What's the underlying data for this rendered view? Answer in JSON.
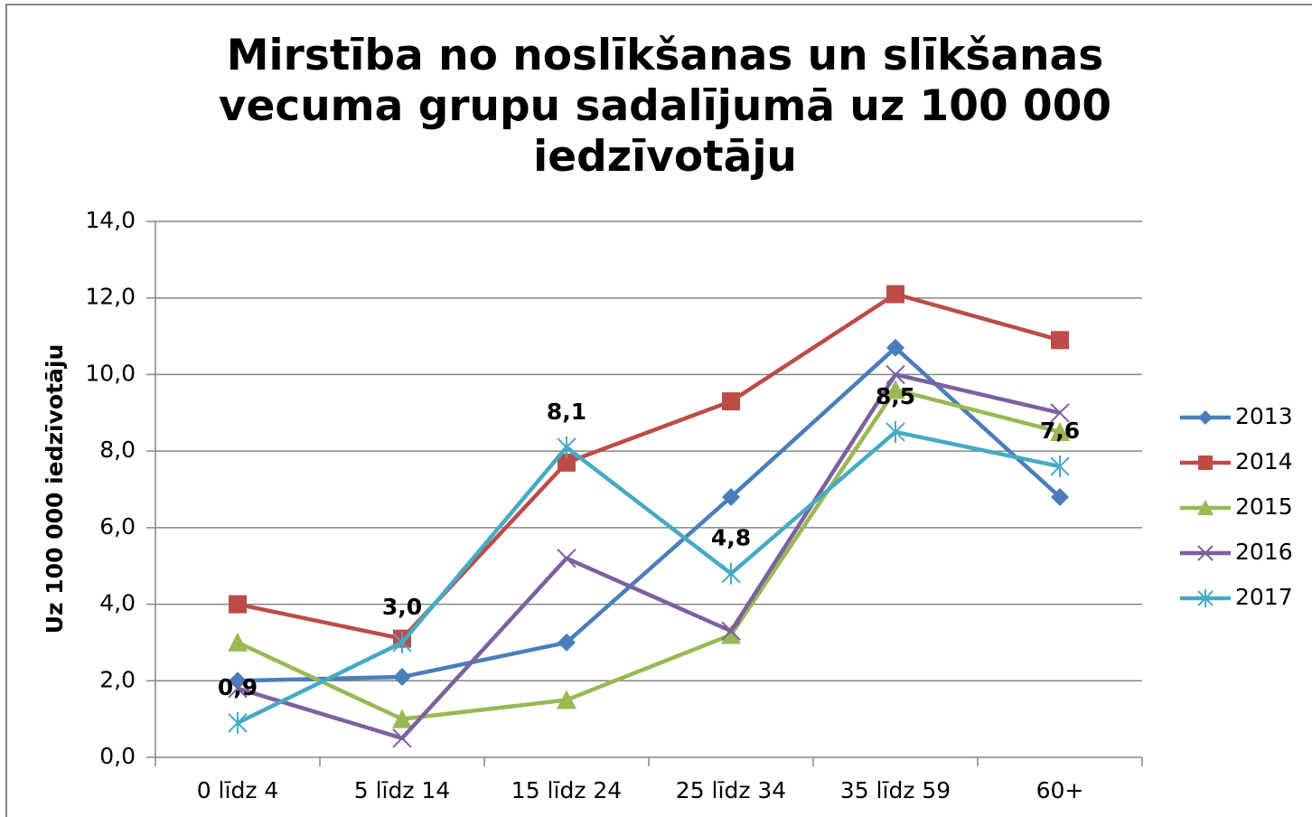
{
  "chart_data": {
    "type": "line",
    "title": "Mirstība no noslīkšanas un slīkšanas vecuma grupu sadalījumā uz 100 000 iedzīvotāju",
    "ylabel": "Uz 100 000 iedzīvotāju",
    "categories": [
      "0 līdz 4",
      "5 līdz 14",
      "15 līdz 24",
      "25 līdz 34",
      "35 līdz 59",
      "60+"
    ],
    "ylim": [
      0,
      14
    ],
    "yticks": [
      {
        "value": 0,
        "label": "0,0"
      },
      {
        "value": 2,
        "label": "2,0"
      },
      {
        "value": 4,
        "label": "4,0"
      },
      {
        "value": 6,
        "label": "6,0"
      },
      {
        "value": 8,
        "label": "8,0"
      },
      {
        "value": 10,
        "label": "10,0"
      },
      {
        "value": 12,
        "label": "12,0"
      },
      {
        "value": 14,
        "label": "14,0"
      }
    ],
    "grid": true,
    "legend": "right",
    "series": [
      {
        "name": "2013",
        "color": "#4a7ebb",
        "marker": "diamond",
        "values": [
          2.0,
          2.1,
          3.0,
          6.8,
          10.7,
          6.8
        ]
      },
      {
        "name": "2014",
        "color": "#be4b48",
        "marker": "square",
        "values": [
          4.0,
          3.1,
          7.7,
          9.3,
          12.1,
          10.9
        ]
      },
      {
        "name": "2015",
        "color": "#98b954",
        "marker": "triangle",
        "values": [
          3.0,
          1.0,
          1.5,
          3.2,
          9.6,
          8.5
        ]
      },
      {
        "name": "2016",
        "color": "#7d60a0",
        "marker": "x",
        "values": [
          1.8,
          0.5,
          5.2,
          3.3,
          10.0,
          9.0
        ]
      },
      {
        "name": "2017",
        "color": "#46aac5",
        "marker": "star",
        "values": [
          0.9,
          3.0,
          8.1,
          4.8,
          8.5,
          7.6
        ],
        "value_labels": [
          "0,9",
          "3,0",
          "8,1",
          "4,8",
          "8,5",
          "7,6"
        ]
      }
    ]
  }
}
